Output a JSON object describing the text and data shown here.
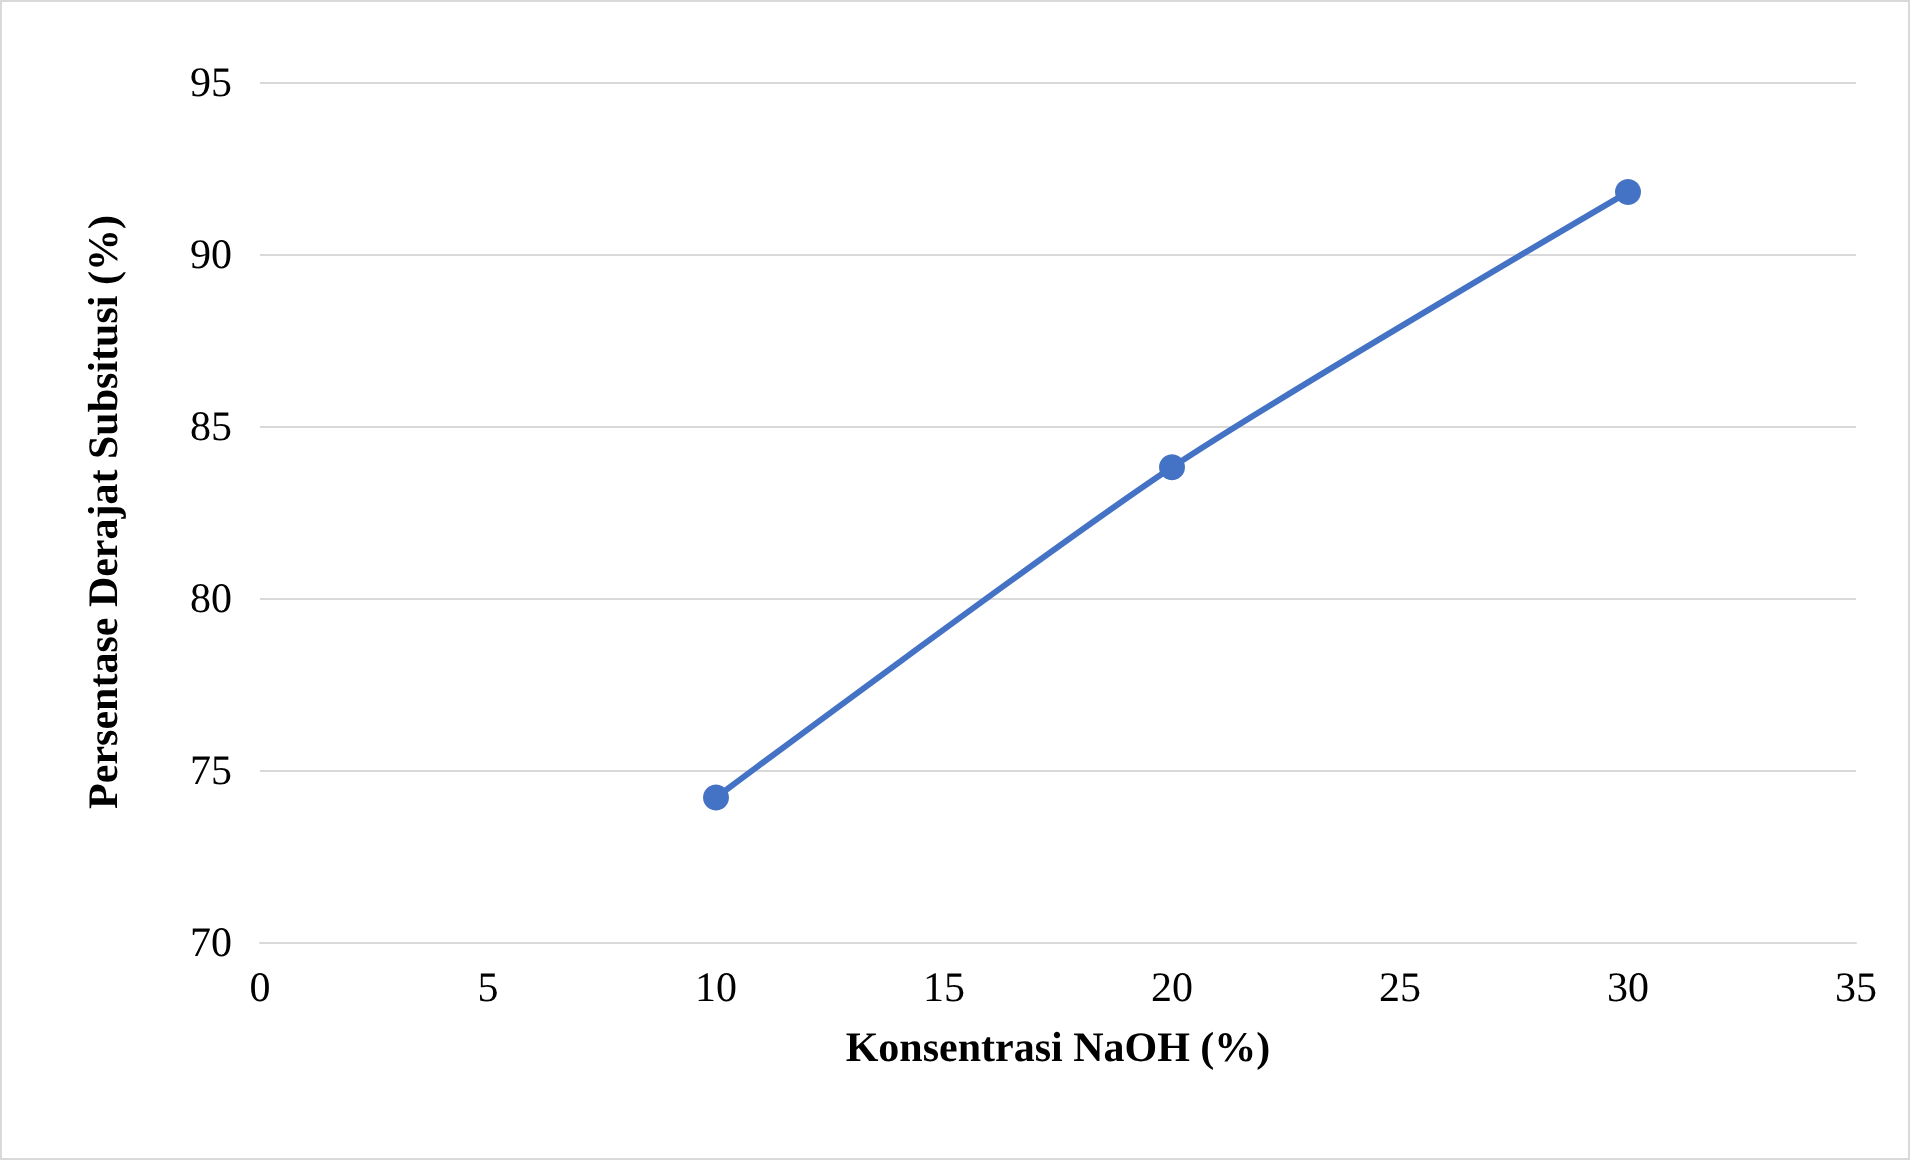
{
  "chart_data": {
    "type": "line",
    "xlabel": "Konsentrasi NaOH (%)",
    "ylabel": "Persentase Derajat Subsitusi (%)",
    "x": [
      10,
      20,
      30
    ],
    "series": [
      {
        "color": "#4472c4",
        "values": [
          74.2,
          83.8,
          91.8
        ]
      }
    ],
    "xlim": [
      0,
      35
    ],
    "xticks": [
      0,
      5,
      10,
      15,
      20,
      25,
      30,
      35
    ],
    "ylim": [
      70,
      95
    ],
    "yticks": [
      70,
      75,
      80,
      85,
      90,
      95
    ],
    "grid": "y",
    "marker": "circle",
    "line_style": "solid"
  }
}
